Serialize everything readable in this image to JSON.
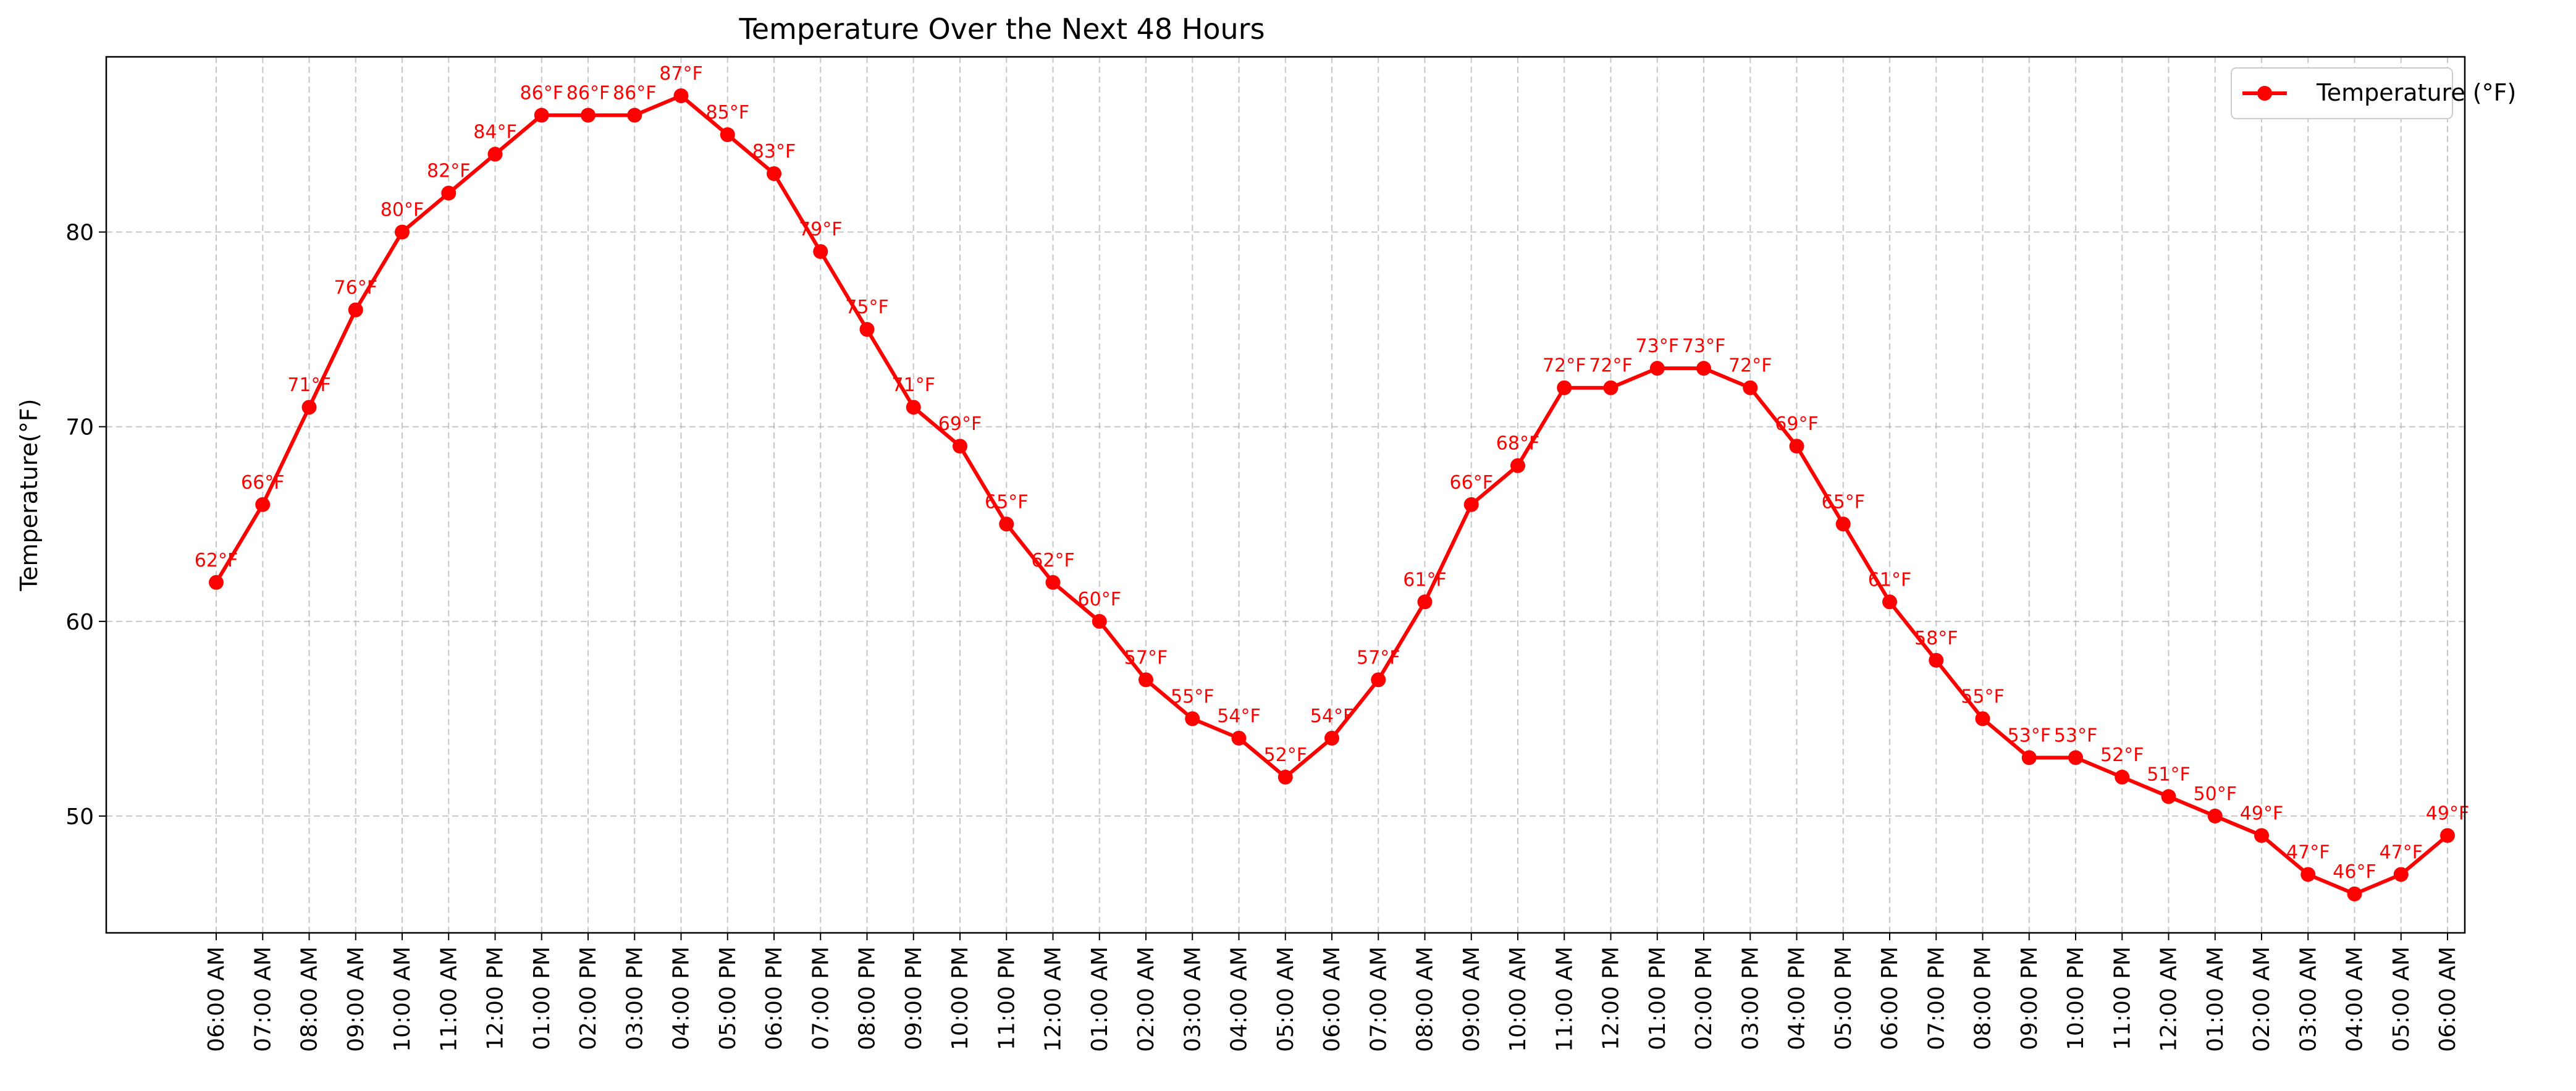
{
  "chart_data": {
    "type": "line",
    "title": "Temperature Over the Next 48 Hours",
    "ylabel": "Temperature(°F)",
    "xlabel": "",
    "ylim": [
      44,
      89
    ],
    "yticks": [
      50,
      60,
      70,
      80
    ],
    "grid": true,
    "legend_position": "top-right",
    "color": "#ff0000",
    "categories": [
      "06:00 AM",
      "07:00 AM",
      "08:00 AM",
      "09:00 AM",
      "10:00 AM",
      "11:00 AM",
      "12:00 PM",
      "01:00 PM",
      "02:00 PM",
      "03:00 PM",
      "04:00 PM",
      "05:00 PM",
      "06:00 PM",
      "07:00 PM",
      "08:00 PM",
      "09:00 PM",
      "10:00 PM",
      "11:00 PM",
      "12:00 AM",
      "01:00 AM",
      "02:00 AM",
      "03:00 AM",
      "04:00 AM",
      "05:00 AM",
      "06:00 AM",
      "07:00 AM",
      "08:00 AM",
      "09:00 AM",
      "10:00 AM",
      "11:00 AM",
      "12:00 PM",
      "01:00 PM",
      "02:00 PM",
      "03:00 PM",
      "04:00 PM",
      "05:00 PM",
      "06:00 PM",
      "07:00 PM",
      "08:00 PM",
      "09:00 PM",
      "10:00 PM",
      "11:00 PM",
      "12:00 AM",
      "01:00 AM",
      "02:00 AM",
      "03:00 AM",
      "04:00 AM",
      "05:00 AM",
      "06:00 AM"
    ],
    "series": [
      {
        "name": "Temperature (°F)",
        "values": [
          62,
          66,
          71,
          76,
          80,
          82,
          84,
          86,
          86,
          86,
          87,
          85,
          83,
          79,
          75,
          71,
          69,
          65,
          62,
          60,
          57,
          55,
          54,
          52,
          54,
          57,
          61,
          66,
          68,
          72,
          72,
          73,
          73,
          72,
          69,
          65,
          61,
          58,
          55,
          53,
          53,
          52,
          51,
          50,
          49,
          47,
          46,
          47,
          49
        ],
        "data_labels": [
          "62°F",
          "66°F",
          "71°F",
          "76°F",
          "80°F",
          "82°F",
          "84°F",
          "86°F",
          "86°F",
          "86°F",
          "87°F",
          "85°F",
          "83°F",
          "79°F",
          "75°F",
          "71°F",
          "69°F",
          "65°F",
          "62°F",
          "60°F",
          "57°F",
          "55°F",
          "54°F",
          "52°F",
          "54°F",
          "57°F",
          "61°F",
          "66°F",
          "68°F",
          "72°F",
          "72°F",
          "73°F",
          "73°F",
          "72°F",
          "69°F",
          "65°F",
          "61°F",
          "58°F",
          "55°F",
          "53°F",
          "53°F",
          "52°F",
          "51°F",
          "50°F",
          "49°F",
          "47°F",
          "46°F",
          "47°F",
          "49°F"
        ]
      }
    ]
  }
}
